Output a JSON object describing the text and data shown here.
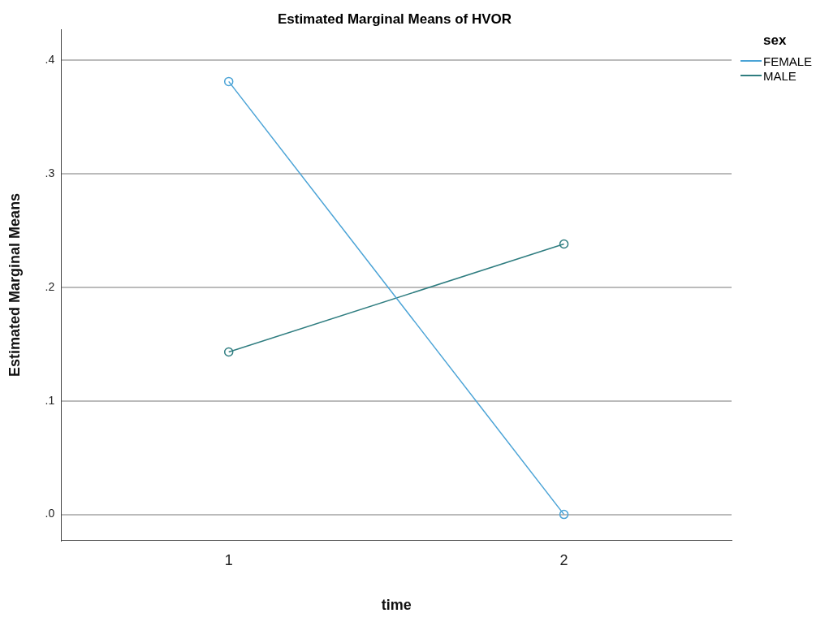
{
  "chart_data": {
    "type": "line",
    "title": "Estimated Marginal Means of HVOR",
    "xlabel": "time",
    "ylabel": "Estimated Marginal Means",
    "legend_title": "sex",
    "categories": [
      "1",
      "2"
    ],
    "series": [
      {
        "name": "FEMALE",
        "color": "#4aa3d6",
        "values": [
          0.381,
          0.0
        ]
      },
      {
        "name": "MALE",
        "color": "#2f7d80",
        "values": [
          0.143,
          0.238
        ]
      }
    ],
    "ylim": [
      -0.023,
      0.427
    ],
    "yticks": [
      {
        "value": 0,
        "label": ".0"
      },
      {
        "value": 0.1,
        "label": ".1"
      },
      {
        "value": 0.2,
        "label": ".2"
      },
      {
        "value": 0.3,
        "label": ".3"
      },
      {
        "value": 0.4,
        "label": ".4"
      }
    ],
    "grid": "y",
    "legend": "top right",
    "marker": "circle",
    "line_style": "solid"
  }
}
